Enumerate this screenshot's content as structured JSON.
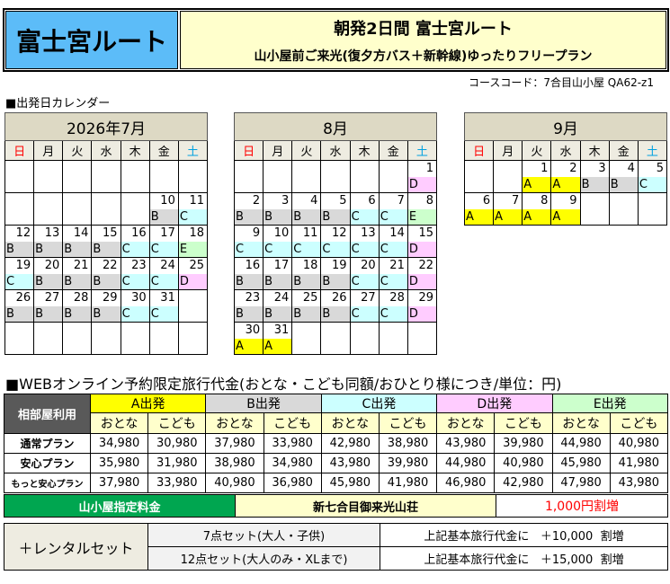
{
  "header": {
    "route": "富士宮ルート",
    "title": "朝発2日間 富士宮ルート",
    "subtitle": "山小屋前ご来光(復夕方バス＋新幹線)ゆったりフリープラン",
    "course_code": "コースコード：7合目山小屋 QA62-z1"
  },
  "calendar_section": "■出発日カレンダー",
  "weekdays": [
    "日",
    "月",
    "火",
    "水",
    "木",
    "金",
    "土"
  ],
  "code_colors": {
    "A": "#ffff00",
    "B": "#d9d9d9",
    "C": "#ccffff",
    "D": "#ffccff",
    "E": "#ccffcc"
  },
  "calendars": [
    {
      "title": "2026年7月",
      "weeks": [
        [
          null,
          null,
          null,
          null,
          null,
          null,
          null
        ],
        [
          null,
          null,
          null,
          null,
          null,
          {
            "d": "10",
            "c": "B"
          },
          {
            "d": "11",
            "c": "C"
          }
        ],
        [
          {
            "d": "12",
            "c": "B"
          },
          {
            "d": "13",
            "c": "B"
          },
          {
            "d": "14",
            "c": "B"
          },
          {
            "d": "15",
            "c": "B"
          },
          {
            "d": "16",
            "c": "C"
          },
          {
            "d": "17",
            "c": "C"
          },
          {
            "d": "18",
            "c": "E"
          }
        ],
        [
          {
            "d": "19",
            "c": "C"
          },
          {
            "d": "20",
            "c": "B"
          },
          {
            "d": "21",
            "c": "B"
          },
          {
            "d": "22",
            "c": "B"
          },
          {
            "d": "23",
            "c": "C"
          },
          {
            "d": "24",
            "c": "C"
          },
          {
            "d": "25",
            "c": "D"
          }
        ],
        [
          {
            "d": "26",
            "c": "B"
          },
          {
            "d": "27",
            "c": "B"
          },
          {
            "d": "28",
            "c": "B"
          },
          {
            "d": "29",
            "c": "B"
          },
          {
            "d": "30",
            "c": "C"
          },
          {
            "d": "31",
            "c": "C"
          },
          null
        ],
        [
          null,
          null,
          null,
          null,
          null,
          null,
          null
        ]
      ]
    },
    {
      "title": "8月",
      "weeks": [
        [
          null,
          null,
          null,
          null,
          null,
          null,
          {
            "d": "1",
            "c": "D"
          }
        ],
        [
          {
            "d": "2",
            "c": "B"
          },
          {
            "d": "3",
            "c": "B"
          },
          {
            "d": "4",
            "c": "B"
          },
          {
            "d": "5",
            "c": "B"
          },
          {
            "d": "6",
            "c": "C"
          },
          {
            "d": "7",
            "c": "C"
          },
          {
            "d": "8",
            "c": "E"
          }
        ],
        [
          {
            "d": "9",
            "c": "C"
          },
          {
            "d": "10",
            "c": "C"
          },
          {
            "d": "11",
            "c": "C"
          },
          {
            "d": "12",
            "c": "C"
          },
          {
            "d": "13",
            "c": "C"
          },
          {
            "d": "14",
            "c": "C"
          },
          {
            "d": "15",
            "c": "D"
          }
        ],
        [
          {
            "d": "16",
            "c": "B"
          },
          {
            "d": "17",
            "c": "B"
          },
          {
            "d": "18",
            "c": "B"
          },
          {
            "d": "19",
            "c": "B"
          },
          {
            "d": "20",
            "c": "C"
          },
          {
            "d": "21",
            "c": "C"
          },
          {
            "d": "22",
            "c": "D"
          }
        ],
        [
          {
            "d": "23",
            "c": "B"
          },
          {
            "d": "24",
            "c": "B"
          },
          {
            "d": "25",
            "c": "B"
          },
          {
            "d": "26",
            "c": "B"
          },
          {
            "d": "27",
            "c": "C"
          },
          {
            "d": "28",
            "c": "C"
          },
          {
            "d": "29",
            "c": "D"
          }
        ],
        [
          {
            "d": "30",
            "c": "A"
          },
          {
            "d": "31",
            "c": "A"
          },
          null,
          null,
          null,
          null,
          null
        ]
      ]
    },
    {
      "title": "9月",
      "weeks": [
        [
          null,
          null,
          {
            "d": "1",
            "c": "A"
          },
          {
            "d": "2",
            "c": "A"
          },
          {
            "d": "3",
            "c": "B"
          },
          {
            "d": "4",
            "c": "B"
          },
          {
            "d": "5",
            "c": "C"
          }
        ],
        [
          {
            "d": "6",
            "c": "A"
          },
          {
            "d": "7",
            "c": "A"
          },
          {
            "d": "8",
            "c": "A"
          },
          {
            "d": "9",
            "c": "A"
          },
          null,
          null,
          null
        ]
      ]
    }
  ],
  "price_section": "■WEBオンライン予約限定旅行代金(おとな・こども同額/おひとり様につき/単位：円)",
  "price": {
    "corner": "相部屋利用",
    "groups": [
      {
        "label": "A出発",
        "color": "#ffff00"
      },
      {
        "label": "B出発",
        "color": "#d9d9d9"
      },
      {
        "label": "C出発",
        "color": "#ccffff"
      },
      {
        "label": "D出発",
        "color": "#ffccff"
      },
      {
        "label": "E出発",
        "color": "#ccffcc"
      }
    ],
    "adult": "おとな",
    "child": "こども",
    "rows": [
      {
        "label": "通常プラン",
        "values": [
          "34,980",
          "30,980",
          "37,980",
          "33,980",
          "42,980",
          "38,980",
          "43,980",
          "39,980",
          "44,980",
          "40,980"
        ]
      },
      {
        "label": "安心プラン",
        "values": [
          "35,980",
          "31,980",
          "38,980",
          "34,980",
          "43,980",
          "39,980",
          "44,980",
          "40,980",
          "45,980",
          "41,980"
        ]
      },
      {
        "label": "もっと安心プラン",
        "values": [
          "37,980",
          "33,980",
          "40,980",
          "36,980",
          "45,980",
          "41,980",
          "46,980",
          "42,980",
          "47,980",
          "43,980"
        ]
      }
    ]
  },
  "hut": {
    "label": "山小屋指定料金",
    "name": "新七合目御来光山荘",
    "surcharge": "1,000円割増"
  },
  "rental": {
    "label": "＋レンタルセット",
    "items": [
      {
        "name": "7点セット(大人・子供)",
        "prefix": "上記基本旅行代金に",
        "amount": "＋10,000",
        "suffix": "割増"
      },
      {
        "name": "12点セット(大人のみ・XLまで)",
        "prefix": "上記基本旅行代金に",
        "amount": "＋15,000",
        "suffix": "割増"
      }
    ]
  }
}
